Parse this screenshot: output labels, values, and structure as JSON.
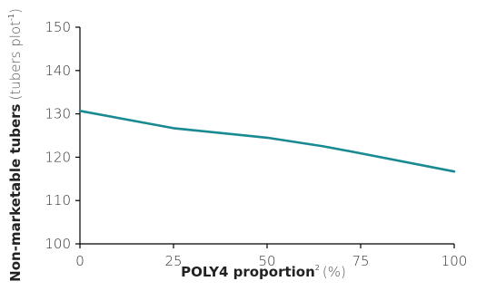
{
  "chart_data": {
    "type": "line",
    "title": "",
    "xlabel": "POLY4 proportion",
    "xlabel_sup": "2",
    "xlabel_unit": "(%)",
    "ylabel": "Non-marketable tubers",
    "ylabel_unit_prefix": "(tubers plot",
    "ylabel_unit_sup": "-1",
    "ylabel_unit_suffix": ")",
    "xlim": [
      0,
      100
    ],
    "ylim": [
      100,
      150
    ],
    "x_ticks": [
      "0",
      "25",
      "50",
      "75",
      "100"
    ],
    "y_ticks": [
      "100",
      "110",
      "120",
      "130",
      "140",
      "150"
    ],
    "grid": false,
    "series": [
      {
        "color": "#1a8a92",
        "x": [
          0,
          25,
          50,
          65,
          75,
          100
        ],
        "y": [
          130.7,
          126.7,
          124.5,
          122.5,
          120.9,
          116.7
        ]
      }
    ]
  }
}
